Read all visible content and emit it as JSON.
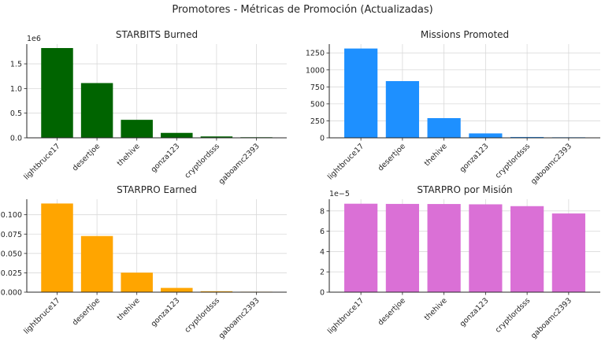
{
  "figure": {
    "title": "Promotores - Métricas de Promoción (Actualizadas)"
  },
  "chart_data": [
    {
      "type": "bar",
      "title": "STARBITS Burned",
      "categories": [
        "lightbruce17",
        "desertjoe",
        "thehive",
        "gonza123",
        "cryptlordsss",
        "gaboamc2393"
      ],
      "values": [
        1820000,
        1110000,
        365000,
        100000,
        28000,
        12000
      ],
      "ylim": [
        0,
        1900000
      ],
      "yticks": [
        0,
        500000,
        1000000,
        1500000
      ],
      "ytick_labels": [
        "0.0",
        "0.5",
        "1.0",
        "1.5"
      ],
      "offset_label": "1e6",
      "color": "#006400",
      "grid": true
    },
    {
      "type": "bar",
      "title": "Missions Promoted",
      "categories": [
        "lightbruce17",
        "desertjoe",
        "thehive",
        "gonza123",
        "cryptlordsss",
        "gaboamc2393"
      ],
      "values": [
        1315,
        835,
        290,
        65,
        12,
        8
      ],
      "ylim": [
        0,
        1380
      ],
      "yticks": [
        0,
        250,
        500,
        750,
        1000,
        1250
      ],
      "ytick_labels": [
        "0",
        "250",
        "500",
        "750",
        "1000",
        "1250"
      ],
      "offset_label": "",
      "color": "#1e90ff",
      "grid": true
    },
    {
      "type": "bar",
      "title": "STARPRO Earned",
      "categories": [
        "lightbruce17",
        "desertjoe",
        "thehive",
        "gonza123",
        "cryptlordsss",
        "gaboamc2393"
      ],
      "values": [
        0.1145,
        0.0725,
        0.0252,
        0.0055,
        0.0012,
        0.0006
      ],
      "ylim": [
        0,
        0.12
      ],
      "yticks": [
        0,
        0.025,
        0.05,
        0.075,
        0.1
      ],
      "ytick_labels": [
        "0.000",
        "0.025",
        "0.050",
        "0.075",
        "0.100"
      ],
      "offset_label": "",
      "color": "#ffa500",
      "grid": true
    },
    {
      "type": "bar",
      "title": "STARPRO por Misión",
      "categories": [
        "lightbruce17",
        "desertjoe",
        "thehive",
        "gonza123",
        "cryptlordsss",
        "gaboamc2393"
      ],
      "values": [
        8.71e-05,
        8.69e-05,
        8.68e-05,
        8.65e-05,
        8.47e-05,
        7.75e-05
      ],
      "ylim": [
        0,
        9.15e-05
      ],
      "yticks": [
        0,
        2e-05,
        4e-05,
        6e-05,
        8e-05
      ],
      "ytick_labels": [
        "0",
        "2",
        "4",
        "6",
        "8"
      ],
      "offset_label": "1e−5",
      "color": "#da70d6",
      "grid": true
    }
  ]
}
